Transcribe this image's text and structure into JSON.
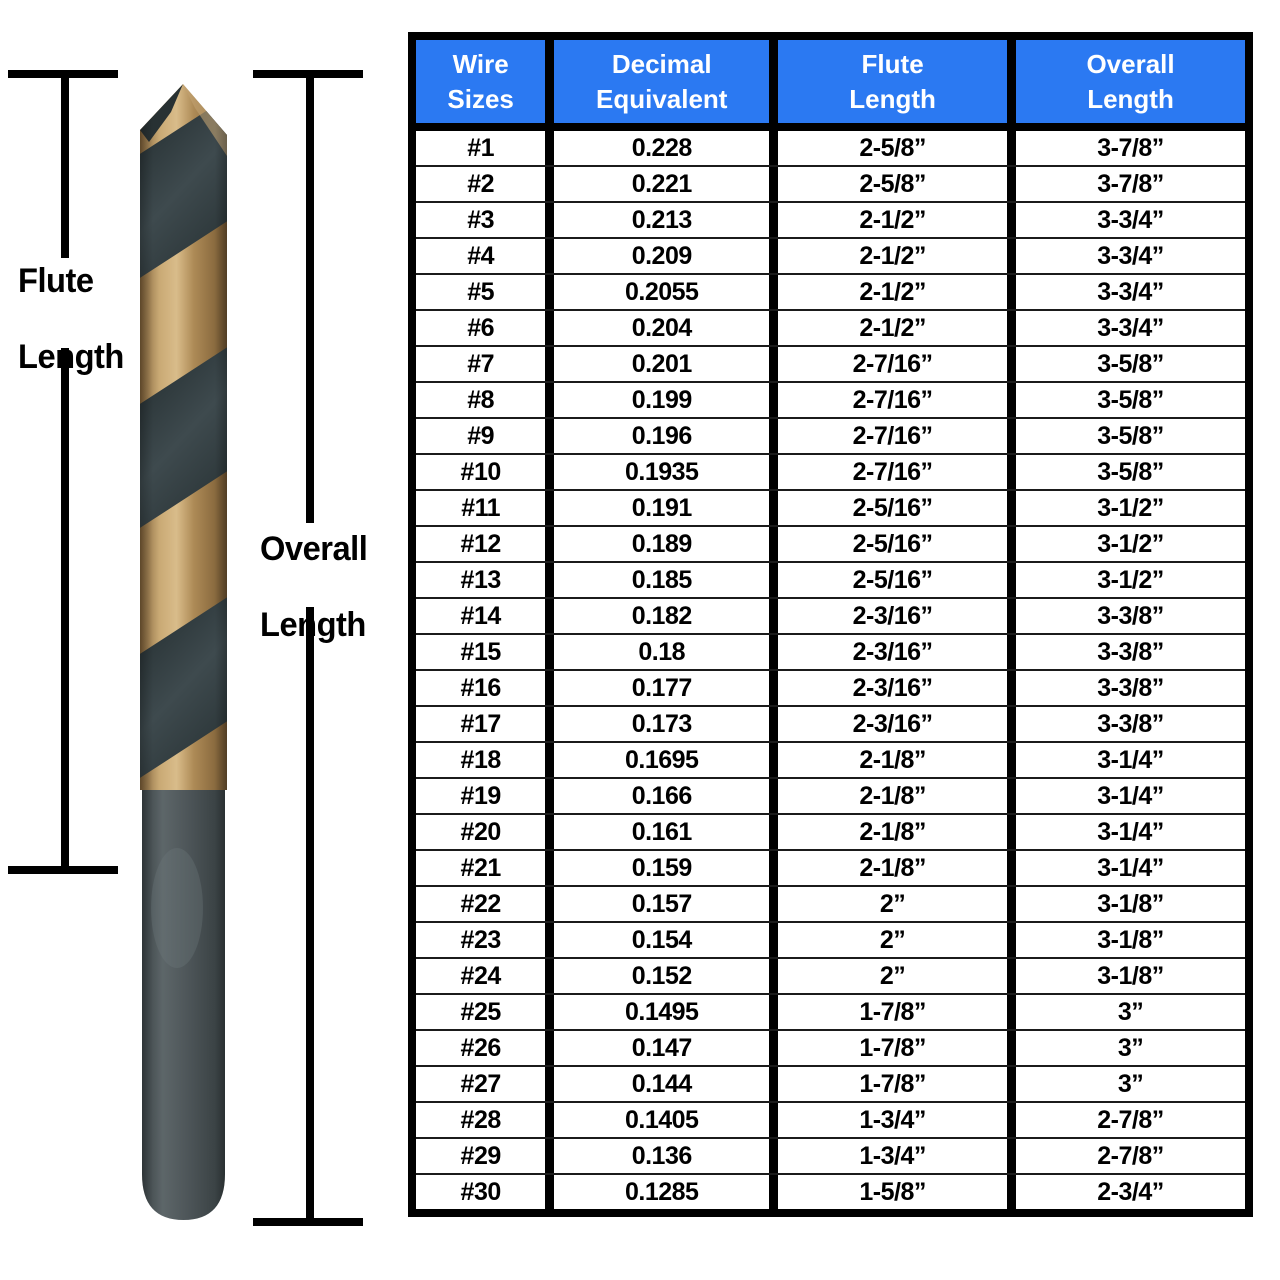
{
  "diagram": {
    "flute_label": {
      "line1": "Flute",
      "line2": "Length"
    },
    "overall_label": {
      "line1": "Overall",
      "line2": "Length"
    }
  },
  "colors": {
    "header_bg": "#2b79f2",
    "header_text": "#ffffff",
    "grid_line": "#000000",
    "drill_gold": "#b9975f",
    "drill_black": "#2e3a3d",
    "drill_shank": "#4b5356"
  },
  "table": {
    "headers": [
      {
        "line1": "Wire",
        "line2": "Sizes"
      },
      {
        "line1": "Decimal",
        "line2": "Equivalent"
      },
      {
        "line1": "Flute",
        "line2": "Length"
      },
      {
        "line1": "Overall",
        "line2": "Length"
      }
    ],
    "rows": [
      [
        "#1",
        "0.228",
        "2-5/8”",
        "3-7/8”"
      ],
      [
        "#2",
        "0.221",
        "2-5/8”",
        "3-7/8”"
      ],
      [
        "#3",
        "0.213",
        "2-1/2”",
        "3-3/4”"
      ],
      [
        "#4",
        "0.209",
        "2-1/2”",
        "3-3/4”"
      ],
      [
        "#5",
        "0.2055",
        "2-1/2”",
        "3-3/4”"
      ],
      [
        "#6",
        "0.204",
        "2-1/2”",
        "3-3/4”"
      ],
      [
        "#7",
        "0.201",
        "2-7/16”",
        "3-5/8”"
      ],
      [
        "#8",
        "0.199",
        "2-7/16”",
        "3-5/8”"
      ],
      [
        "#9",
        "0.196",
        "2-7/16”",
        "3-5/8”"
      ],
      [
        "#10",
        "0.1935",
        "2-7/16”",
        "3-5/8”"
      ],
      [
        "#11",
        "0.191",
        "2-5/16”",
        "3-1/2”"
      ],
      [
        "#12",
        "0.189",
        "2-5/16”",
        "3-1/2”"
      ],
      [
        "#13",
        "0.185",
        "2-5/16”",
        "3-1/2”"
      ],
      [
        "#14",
        "0.182",
        "2-3/16”",
        "3-3/8”"
      ],
      [
        "#15",
        "0.18",
        "2-3/16”",
        "3-3/8”"
      ],
      [
        "#16",
        "0.177",
        "2-3/16”",
        "3-3/8”"
      ],
      [
        "#17",
        "0.173",
        "2-3/16”",
        "3-3/8”"
      ],
      [
        "#18",
        "0.1695",
        "2-1/8”",
        "3-1/4”"
      ],
      [
        "#19",
        "0.166",
        "2-1/8”",
        "3-1/4”"
      ],
      [
        "#20",
        "0.161",
        "2-1/8”",
        "3-1/4”"
      ],
      [
        "#21",
        "0.159",
        "2-1/8”",
        "3-1/4”"
      ],
      [
        "#22",
        "0.157",
        "2”",
        "3-1/8”"
      ],
      [
        "#23",
        "0.154",
        "2”",
        "3-1/8”"
      ],
      [
        "#24",
        "0.152",
        "2”",
        "3-1/8”"
      ],
      [
        "#25",
        "0.1495",
        "1-7/8”",
        "3”"
      ],
      [
        "#26",
        "0.147",
        "1-7/8”",
        "3”"
      ],
      [
        "#27",
        "0.144",
        "1-7/8”",
        "3”"
      ],
      [
        "#28",
        "0.1405",
        "1-3/4”",
        "2-7/8”"
      ],
      [
        "#29",
        "0.136",
        "1-3/4”",
        "2-7/8”"
      ],
      [
        "#30",
        "0.1285",
        "1-5/8”",
        "2-3/4”"
      ]
    ]
  },
  "chart_data": {
    "type": "table",
    "title": "Wire size drill bit dimensions",
    "columns": [
      "Wire Sizes",
      "Decimal Equivalent",
      "Flute Length",
      "Overall Length"
    ],
    "rows": [
      [
        "#1",
        "0.228",
        "2-5/8\"",
        "3-7/8\""
      ],
      [
        "#2",
        "0.221",
        "2-5/8\"",
        "3-7/8\""
      ],
      [
        "#3",
        "0.213",
        "2-1/2\"",
        "3-3/4\""
      ],
      [
        "#4",
        "0.209",
        "2-1/2\"",
        "3-3/4\""
      ],
      [
        "#5",
        "0.2055",
        "2-1/2\"",
        "3-3/4\""
      ],
      [
        "#6",
        "0.204",
        "2-1/2\"",
        "3-3/4\""
      ],
      [
        "#7",
        "0.201",
        "2-7/16\"",
        "3-5/8\""
      ],
      [
        "#8",
        "0.199",
        "2-7/16\"",
        "3-5/8\""
      ],
      [
        "#9",
        "0.196",
        "2-7/16\"",
        "3-5/8\""
      ],
      [
        "#10",
        "0.1935",
        "2-7/16\"",
        "3-5/8\""
      ],
      [
        "#11",
        "0.191",
        "2-5/16\"",
        "3-1/2\""
      ],
      [
        "#12",
        "0.189",
        "2-5/16\"",
        "3-1/2\""
      ],
      [
        "#13",
        "0.185",
        "2-5/16\"",
        "3-1/2\""
      ],
      [
        "#14",
        "0.182",
        "2-3/16\"",
        "3-3/8\""
      ],
      [
        "#15",
        "0.18",
        "2-3/16\"",
        "3-3/8\""
      ],
      [
        "#16",
        "0.177",
        "2-3/16\"",
        "3-3/8\""
      ],
      [
        "#17",
        "0.173",
        "2-3/16\"",
        "3-3/8\""
      ],
      [
        "#18",
        "0.1695",
        "2-1/8\"",
        "3-1/4\""
      ],
      [
        "#19",
        "0.166",
        "2-1/8\"",
        "3-1/4\""
      ],
      [
        "#20",
        "0.161",
        "2-1/8\"",
        "3-1/4\""
      ],
      [
        "#21",
        "0.159",
        "2-1/8\"",
        "3-1/4\""
      ],
      [
        "#22",
        "0.157",
        "2\"",
        "3-1/8\""
      ],
      [
        "#23",
        "0.154",
        "2\"",
        "3-1/8\""
      ],
      [
        "#24",
        "0.152",
        "2\"",
        "3-1/8\""
      ],
      [
        "#25",
        "0.1495",
        "1-7/8\"",
        "3\""
      ],
      [
        "#26",
        "0.147",
        "1-7/8\"",
        "3\""
      ],
      [
        "#27",
        "0.144",
        "1-7/8\"",
        "3\""
      ],
      [
        "#28",
        "0.1405",
        "1-3/4\"",
        "2-7/8\""
      ],
      [
        "#29",
        "0.136",
        "1-3/4\"",
        "2-7/8\""
      ],
      [
        "#30",
        "0.1285",
        "1-5/8\"",
        "2-3/4\""
      ]
    ]
  }
}
